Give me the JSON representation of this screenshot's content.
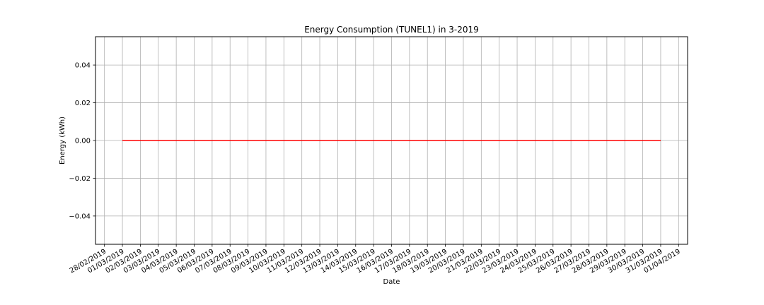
{
  "chart_data": {
    "type": "line",
    "title": "Energy Consumption (TUNEL1) in 3-2019",
    "xlabel": "Date",
    "ylabel": "Energy (kWh)",
    "x_tick_labels": [
      "28/02/2019",
      "01/03/2019",
      "02/03/2019",
      "03/03/2019",
      "04/03/2019",
      "05/03/2019",
      "06/03/2019",
      "07/03/2019",
      "08/03/2019",
      "09/03/2019",
      "10/03/2019",
      "11/03/2019",
      "12/03/2019",
      "13/03/2019",
      "14/03/2019",
      "15/03/2019",
      "16/03/2019",
      "17/03/2019",
      "18/03/2019",
      "19/03/2019",
      "20/03/2019",
      "21/03/2019",
      "22/03/2019",
      "23/03/2019",
      "24/03/2019",
      "25/03/2019",
      "26/03/2019",
      "27/03/2019",
      "28/03/2019",
      "29/03/2019",
      "30/03/2019",
      "31/03/2019",
      "01/04/2019"
    ],
    "y_ticks": [
      -0.04,
      -0.02,
      0.0,
      0.02,
      0.04
    ],
    "y_tick_labels": [
      "−0.04",
      "−0.02",
      "0.00",
      "0.02",
      "0.04"
    ],
    "ylim": [
      -0.055,
      0.055
    ],
    "xlim": [
      "27/02/2019",
      "01/04/2019"
    ],
    "grid": true,
    "series": [
      {
        "color": "#ff0000",
        "x": [
          "01/03/2019",
          "31/03/2019"
        ],
        "y": [
          0.0,
          0.0
        ]
      }
    ]
  }
}
